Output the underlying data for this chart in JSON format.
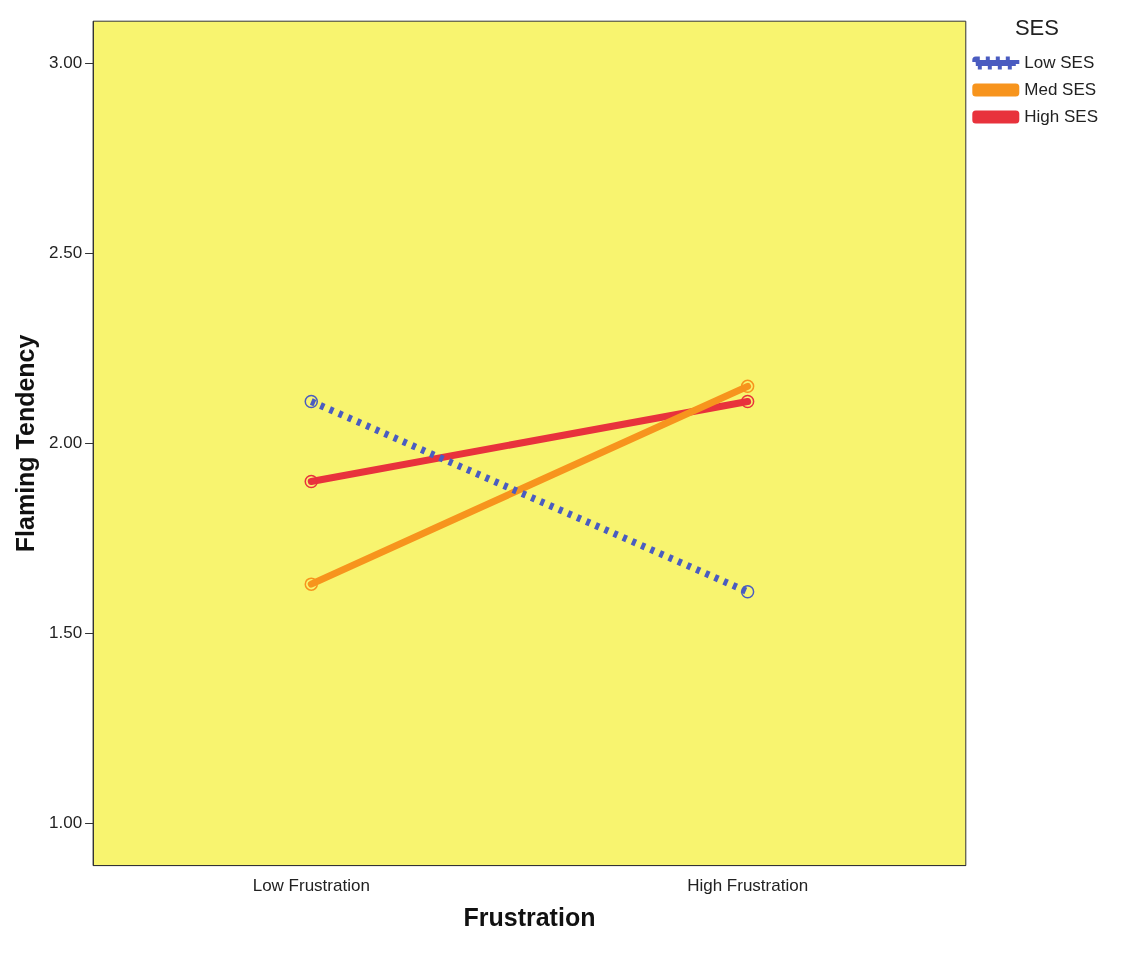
{
  "chart_data": {
    "type": "line",
    "xlabel": "Frustration",
    "ylabel": "Flaming Tendency",
    "legend_title": "SES",
    "categories": [
      "Low Frustration",
      "High Frustration"
    ],
    "series": [
      {
        "name": "Low SES",
        "color": "#4a5cc0",
        "values": [
          2.11,
          1.61
        ],
        "line_style": "dotted"
      },
      {
        "name": "Med SES",
        "color": "#f7941d",
        "values": [
          1.63,
          2.15
        ],
        "line_style": "solid"
      },
      {
        "name": "High SES",
        "color": "#e8323c",
        "values": [
          1.9,
          2.11
        ],
        "line_style": "solid"
      }
    ],
    "ylim": [
      0.89,
      3.11
    ],
    "yticks": [
      {
        "value": 1,
        "label": "1.00"
      },
      {
        "value": 1.5,
        "label": "1.50"
      },
      {
        "value": 2,
        "label": "2.00"
      },
      {
        "value": 2.5,
        "label": "2.50"
      },
      {
        "value": 3,
        "label": "3.00"
      }
    ],
    "grid": false,
    "legend": "top right",
    "marker": "circle"
  }
}
